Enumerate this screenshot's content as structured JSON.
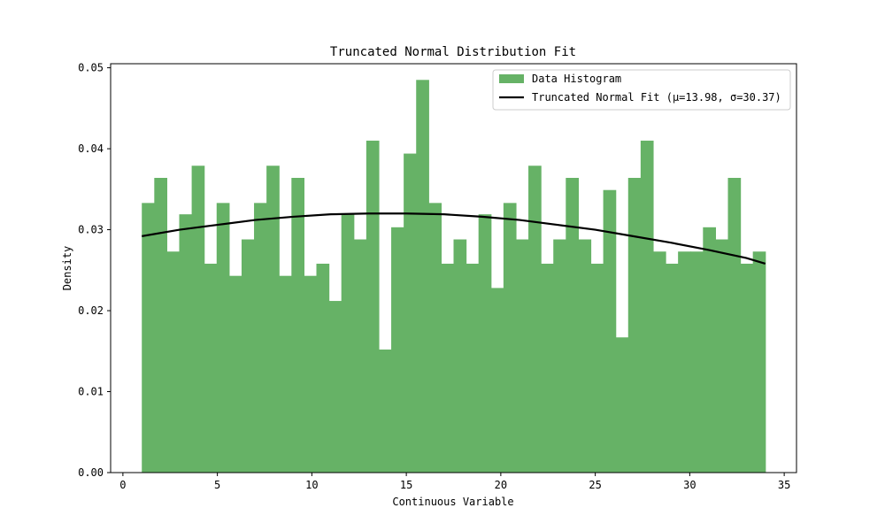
{
  "chart_data": {
    "type": "bar",
    "title": "Truncated Normal Distribution Fit",
    "xlabel": "Continuous Variable",
    "ylabel": "Density",
    "xlim": [
      -0.65,
      35.65
    ],
    "ylim": [
      0,
      0.0505
    ],
    "x_ticks": [
      0,
      5,
      10,
      15,
      20,
      25,
      30,
      35
    ],
    "x_tick_labels": [
      "0",
      "5",
      "10",
      "15",
      "20",
      "25",
      "30",
      "35"
    ],
    "y_ticks": [
      0,
      0.01,
      0.02,
      0.03,
      0.04,
      0.05
    ],
    "y_tick_labels": [
      "0.00",
      "0.01",
      "0.02",
      "0.03",
      "0.04",
      "0.05"
    ],
    "grid": false,
    "legend_position": "top-right",
    "series": [
      {
        "name": "Data Histogram",
        "kind": "histogram",
        "color": "#66b266",
        "bin_start": 1,
        "bin_end": 34,
        "values": [
          0.0333,
          0.0364,
          0.0273,
          0.0319,
          0.0379,
          0.0258,
          0.0333,
          0.0243,
          0.0288,
          0.0333,
          0.0379,
          0.0243,
          0.0364,
          0.0243,
          0.0258,
          0.0212,
          0.0319,
          0.0288,
          0.041,
          0.0152,
          0.0303,
          0.0394,
          0.0485,
          0.0333,
          0.0258,
          0.0288,
          0.0258,
          0.0319,
          0.0228,
          0.0333,
          0.0288,
          0.0379,
          0.0258,
          0.0288,
          0.0364,
          0.0288,
          0.0258,
          0.0349,
          0.0167,
          0.0364,
          0.041,
          0.0273,
          0.0258,
          0.0273,
          0.0273,
          0.0303,
          0.0288,
          0.0364,
          0.0258,
          0.0273
        ]
      },
      {
        "name": "Truncated Normal Fit (μ=13.98, σ=30.37)",
        "kind": "line",
        "color": "#000000",
        "x": [
          1,
          3,
          5,
          7,
          9,
          11,
          13,
          14,
          15,
          17,
          19,
          21,
          23,
          25,
          27,
          29,
          31,
          33,
          34
        ],
        "y": [
          0.0292,
          0.03,
          0.0306,
          0.0312,
          0.0316,
          0.0319,
          0.032,
          0.032,
          0.032,
          0.0319,
          0.0316,
          0.0312,
          0.0306,
          0.03,
          0.0292,
          0.0284,
          0.0275,
          0.0265,
          0.0258
        ]
      }
    ]
  }
}
